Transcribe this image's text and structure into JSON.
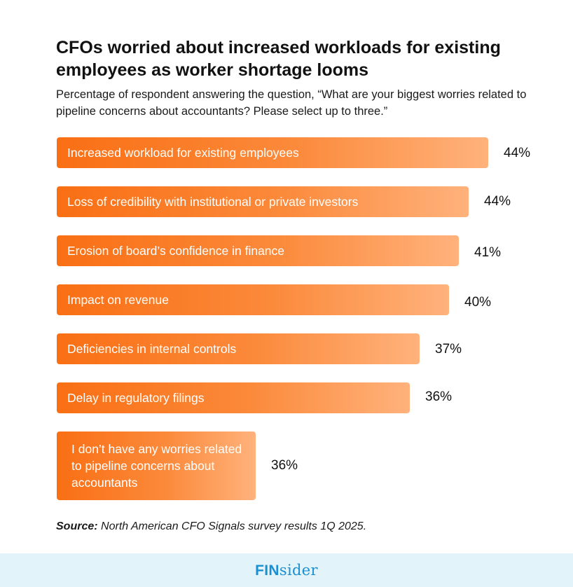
{
  "title": "CFOs worried about increased workloads for existing employees as worker shortage looms",
  "subtitle": "Percentage of respondent answering the question, “What are your biggest worries related to pipeline concerns about accountants? Please select up to three.”",
  "source": {
    "label": "Source:",
    "text": "North American CFO Signals survey results 1Q 2025."
  },
  "footer": {
    "logo_strong": "FIN",
    "logo_light": "sider"
  },
  "colors": {
    "bar_start": "#f96f14",
    "bar_end": "#ffb27c",
    "footer_bg": "#e3f3fa",
    "logo": "#1a8fd2"
  },
  "chart_data": {
    "type": "bar",
    "orientation": "horizontal",
    "categories": [
      "Increased workload for existing employees",
      "Loss of credibility with institutional or private investors",
      "Erosion of board’s confidence in finance",
      "Impact on revenue",
      "Deficiencies in internal controls",
      "Delay in regulatory filings",
      "I don’t have any worries related to pipeline concerns about accountants"
    ],
    "values": [
      44,
      44,
      41,
      40,
      37,
      36,
      36
    ],
    "value_labels": [
      "44%",
      "44%",
      "41%",
      "40%",
      "37%",
      "36%",
      "36%"
    ],
    "value_unit": "%",
    "value_axis_shown": false,
    "gridlines": false,
    "legend": "none"
  }
}
